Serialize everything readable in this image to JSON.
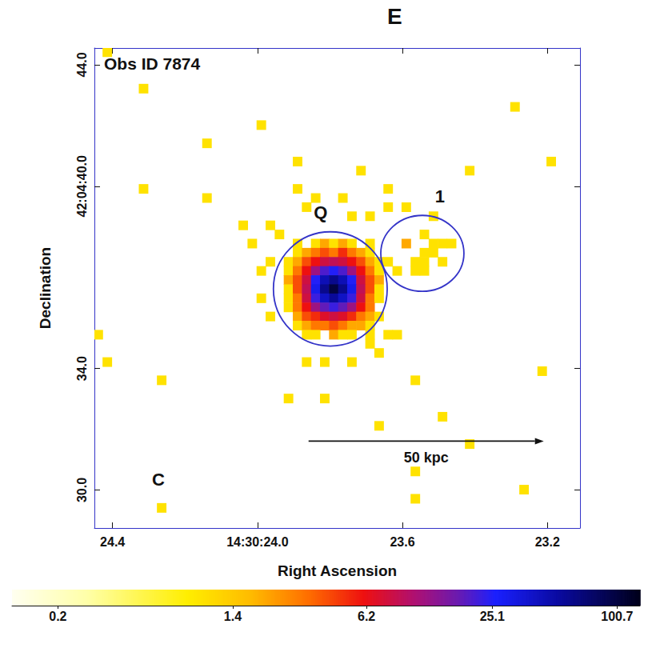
{
  "chart_data": {
    "type": "heatmap",
    "panel_label": "E",
    "title": "Obs ID 7874",
    "x_label": "Right Ascension",
    "y_label": "Declination",
    "xlim": [
      23.11,
      24.45
    ],
    "xticks": [
      24.4,
      {
        "value": 24.0,
        "label": "14:30:24.0"
      },
      23.6,
      23.2
    ],
    "ylim": [
      28.75,
      44.55
    ],
    "yticks": [
      {
        "value": 44,
        "label": "44.0"
      },
      {
        "value": 40,
        "label": "42:04:40.0"
      },
      {
        "value": 34,
        "label": "34.0"
      },
      {
        "value": 30,
        "label": "30.0"
      }
    ],
    "grid": false,
    "cell_size": [
      0.025,
      0.3
    ],
    "cells": [
      [
        23.89,
        38.12,
        1
      ],
      [
        23.84,
        38.12,
        1
      ],
      [
        23.815,
        38.12,
        2
      ],
      [
        23.79,
        38.12,
        1
      ],
      [
        23.765,
        38.12,
        2
      ],
      [
        23.74,
        38.12,
        1
      ],
      [
        23.69,
        38.12,
        1
      ],
      [
        23.89,
        37.82,
        1
      ],
      [
        23.865,
        37.82,
        2
      ],
      [
        23.84,
        37.82,
        3
      ],
      [
        23.815,
        37.82,
        4
      ],
      [
        23.79,
        37.82,
        3
      ],
      [
        23.765,
        37.82,
        5
      ],
      [
        23.74,
        37.82,
        3
      ],
      [
        23.715,
        37.82,
        2
      ],
      [
        23.69,
        37.82,
        1
      ],
      [
        23.915,
        37.52,
        1
      ],
      [
        23.89,
        37.52,
        2
      ],
      [
        23.865,
        37.52,
        4
      ],
      [
        23.84,
        37.52,
        6
      ],
      [
        23.815,
        37.52,
        8
      ],
      [
        23.79,
        37.52,
        9
      ],
      [
        23.765,
        37.52,
        8
      ],
      [
        23.74,
        37.52,
        6
      ],
      [
        23.715,
        37.52,
        4
      ],
      [
        23.69,
        37.52,
        2
      ],
      [
        23.665,
        37.52,
        1
      ],
      [
        23.915,
        37.22,
        1
      ],
      [
        23.89,
        37.22,
        3
      ],
      [
        23.865,
        37.22,
        6
      ],
      [
        23.84,
        37.22,
        12
      ],
      [
        23.815,
        37.22,
        20
      ],
      [
        23.79,
        37.22,
        25
      ],
      [
        23.765,
        37.22,
        20
      ],
      [
        23.74,
        37.22,
        12
      ],
      [
        23.715,
        37.22,
        6
      ],
      [
        23.69,
        37.22,
        3
      ],
      [
        23.665,
        37.22,
        1
      ],
      [
        23.915,
        36.92,
        2
      ],
      [
        23.89,
        36.92,
        4
      ],
      [
        23.865,
        36.92,
        8
      ],
      [
        23.84,
        36.92,
        25
      ],
      [
        23.815,
        36.92,
        45
      ],
      [
        23.79,
        36.92,
        60
      ],
      [
        23.765,
        36.92,
        45
      ],
      [
        23.74,
        36.92,
        25
      ],
      [
        23.715,
        36.92,
        8
      ],
      [
        23.69,
        36.92,
        4
      ],
      [
        23.665,
        36.92,
        2
      ],
      [
        23.915,
        36.62,
        1
      ],
      [
        23.89,
        36.62,
        4
      ],
      [
        23.865,
        36.62,
        9
      ],
      [
        23.84,
        36.62,
        30
      ],
      [
        23.815,
        36.62,
        60
      ],
      [
        23.79,
        36.62,
        100
      ],
      [
        23.765,
        36.62,
        60
      ],
      [
        23.74,
        36.62,
        30
      ],
      [
        23.715,
        36.62,
        9
      ],
      [
        23.69,
        36.62,
        4
      ],
      [
        23.665,
        36.62,
        1
      ],
      [
        23.915,
        36.32,
        1
      ],
      [
        23.89,
        36.32,
        3
      ],
      [
        23.865,
        36.32,
        8
      ],
      [
        23.84,
        36.32,
        22
      ],
      [
        23.815,
        36.32,
        40
      ],
      [
        23.79,
        36.32,
        55
      ],
      [
        23.765,
        36.32,
        40
      ],
      [
        23.74,
        36.32,
        22
      ],
      [
        23.715,
        36.32,
        8
      ],
      [
        23.69,
        36.32,
        3
      ],
      [
        23.665,
        36.32,
        1
      ],
      [
        23.915,
        36.02,
        1
      ],
      [
        23.89,
        36.02,
        3
      ],
      [
        23.865,
        36.02,
        6
      ],
      [
        23.84,
        36.02,
        12
      ],
      [
        23.815,
        36.02,
        18
      ],
      [
        23.79,
        36.02,
        22
      ],
      [
        23.765,
        36.02,
        18
      ],
      [
        23.74,
        36.02,
        12
      ],
      [
        23.715,
        36.02,
        6
      ],
      [
        23.69,
        36.02,
        3
      ],
      [
        23.89,
        35.72,
        2
      ],
      [
        23.865,
        35.72,
        4
      ],
      [
        23.84,
        35.72,
        5
      ],
      [
        23.815,
        35.72,
        7
      ],
      [
        23.79,
        35.72,
        8
      ],
      [
        23.765,
        35.72,
        7
      ],
      [
        23.74,
        35.72,
        5
      ],
      [
        23.715,
        35.72,
        3
      ],
      [
        23.69,
        35.72,
        2
      ],
      [
        23.665,
        35.72,
        1
      ],
      [
        23.89,
        35.42,
        1
      ],
      [
        23.865,
        35.42,
        2
      ],
      [
        23.84,
        35.42,
        3
      ],
      [
        23.815,
        35.42,
        3
      ],
      [
        23.79,
        35.42,
        4
      ],
      [
        23.765,
        35.42,
        3
      ],
      [
        23.74,
        35.42,
        2
      ],
      [
        23.715,
        35.42,
        2
      ],
      [
        23.69,
        35.42,
        1
      ],
      [
        23.865,
        35.12,
        1
      ],
      [
        23.84,
        35.12,
        1
      ],
      [
        23.79,
        35.12,
        2
      ],
      [
        23.765,
        35.12,
        1
      ],
      [
        23.74,
        35.12,
        1
      ],
      [
        23.69,
        35.12,
        1
      ],
      [
        24.415,
        44.42,
        1
      ],
      [
        24.315,
        43.22,
        1
      ],
      [
        23.99,
        42.02,
        1
      ],
      [
        24.14,
        41.42,
        1
      ],
      [
        23.89,
        40.82,
        1
      ],
      [
        23.715,
        40.52,
        1
      ],
      [
        24.315,
        39.92,
        1
      ],
      [
        24.14,
        39.62,
        1
      ],
      [
        23.765,
        39.62,
        1
      ],
      [
        23.84,
        39.62,
        1
      ],
      [
        23.89,
        39.92,
        1
      ],
      [
        23.64,
        39.92,
        1
      ],
      [
        23.64,
        39.32,
        1
      ],
      [
        23.74,
        39.02,
        1
      ],
      [
        23.69,
        39.02,
        1
      ],
      [
        24.04,
        38.72,
        1
      ],
      [
        23.965,
        38.72,
        1
      ],
      [
        23.865,
        39.32,
        1
      ],
      [
        23.94,
        38.42,
        1
      ],
      [
        24.015,
        38.12,
        1
      ],
      [
        23.965,
        37.52,
        1
      ],
      [
        23.99,
        37.22,
        1
      ],
      [
        23.99,
        36.32,
        1
      ],
      [
        23.965,
        35.72,
        1
      ],
      [
        23.64,
        37.52,
        1
      ],
      [
        23.69,
        34.82,
        1
      ],
      [
        23.64,
        35.12,
        1
      ],
      [
        23.615,
        35.12,
        1
      ],
      [
        23.665,
        34.52,
        1
      ],
      [
        23.865,
        34.22,
        1
      ],
      [
        23.815,
        34.22,
        1
      ],
      [
        23.74,
        34.22,
        1
      ],
      [
        23.915,
        33.02,
        1
      ],
      [
        23.815,
        33.02,
        1
      ],
      [
        23.565,
        33.62,
        1
      ],
      [
        23.665,
        32.12,
        1
      ],
      [
        23.49,
        32.42,
        1
      ],
      [
        23.565,
        29.72,
        1
      ],
      [
        23.565,
        30.62,
        1
      ],
      [
        23.415,
        31.52,
        1
      ],
      [
        23.215,
        33.92,
        1
      ],
      [
        23.29,
        42.62,
        1
      ],
      [
        23.415,
        40.52,
        1
      ],
      [
        23.19,
        40.82,
        1
      ],
      [
        24.44,
        35.12,
        1
      ],
      [
        24.415,
        34.22,
        1
      ],
      [
        24.265,
        33.62,
        1
      ],
      [
        24.265,
        29.42,
        1
      ],
      [
        23.265,
        30.02,
        1
      ],
      [
        23.59,
        39.32,
        1
      ],
      [
        23.54,
        38.42,
        1
      ],
      [
        23.515,
        39.02,
        1
      ],
      [
        23.59,
        38.12,
        2
      ],
      [
        23.515,
        38.12,
        1
      ],
      [
        23.54,
        37.82,
        1
      ],
      [
        23.49,
        38.12,
        1
      ],
      [
        23.465,
        38.12,
        1
      ],
      [
        23.54,
        37.52,
        1
      ],
      [
        23.515,
        37.82,
        1
      ],
      [
        23.565,
        37.22,
        1
      ],
      [
        23.54,
        37.22,
        1
      ],
      [
        23.49,
        37.52,
        1
      ],
      [
        23.615,
        37.22,
        1
      ],
      [
        23.565,
        37.52,
        1
      ]
    ],
    "colorbar": {
      "range": [
        0.12,
        130
      ],
      "ticks": [
        0.2,
        1.4,
        6.2,
        25.1,
        100.7
      ],
      "log": true
    },
    "regions": [
      {
        "label": "Q",
        "ra": 23.799,
        "dec": 36.62,
        "ra_radius": 0.157,
        "dec_radius": 1.88
      },
      {
        "label": "1",
        "ra": 23.545,
        "dec": 37.79,
        "ra_radius": 0.1147,
        "dec_radius": 1.25
      }
    ],
    "scale_bar": {
      "label": "50 kpc",
      "ra": [
        23.859,
        23.21
      ],
      "dec": 31.61
    },
    "annotations": [
      "C"
    ]
  }
}
